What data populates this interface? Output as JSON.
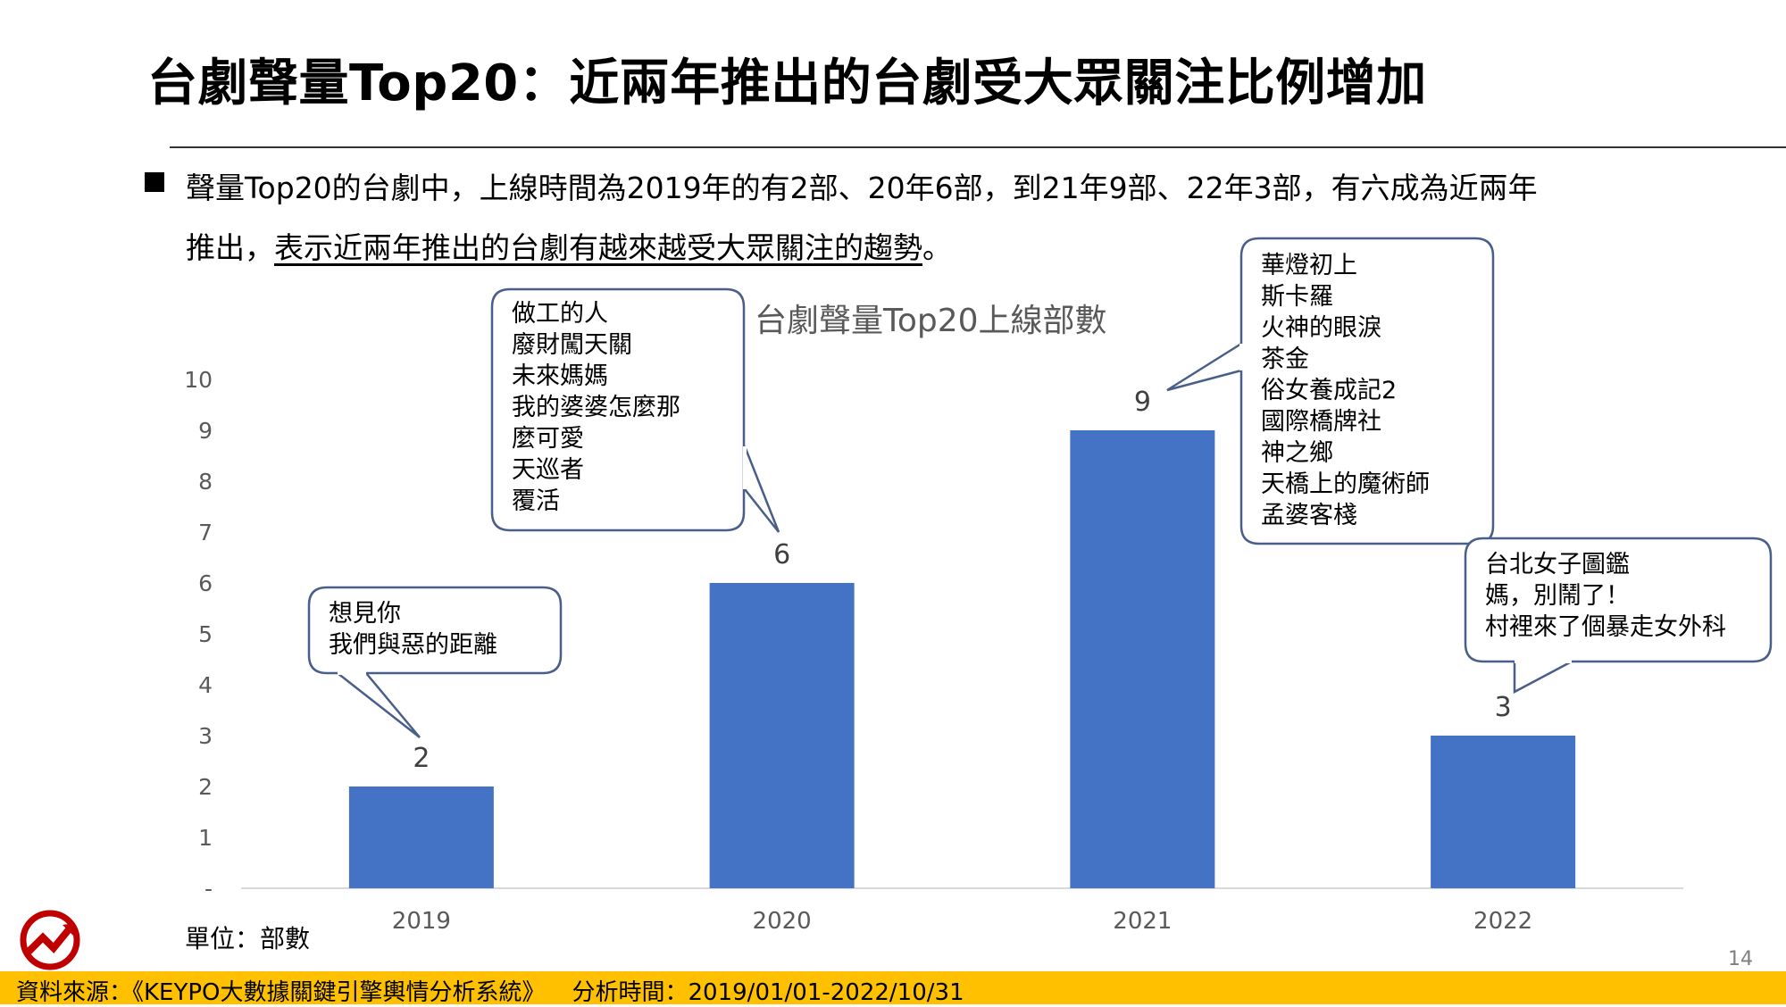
{
  "page": {
    "title": "台劇聲量Top20：近兩年推出的台劇受大眾關注比例增加",
    "bullet": {
      "line1": "聲量Top20的台劇中，上線時間為2019年的有2部、20年6部，到21年9部、22年3部，有六成為近兩年",
      "line2_prefix": "推出，",
      "line2_underlined": "表示近兩年推出的台劇有越來越受大眾關注的趨勢",
      "line2_suffix": "。"
    },
    "unit_label": "單位：部數",
    "page_number": "14",
    "footer": {
      "source": "資料來源：《KEYPO大數據關鍵引擎輿情分析系統》",
      "period": "分析時間：2019/01/01-2022/10/31"
    }
  },
  "colors": {
    "bar": "#4472C4",
    "footer_bg": "#FFC000",
    "bubble_border": "#4A5E8A",
    "axis_text": "#595959"
  },
  "chart_data": {
    "type": "bar",
    "title": "台劇聲量Top20上線部數",
    "categories": [
      "2019",
      "2020",
      "2021",
      "2022"
    ],
    "values": [
      2,
      6,
      9,
      3
    ],
    "data_labels": [
      "2",
      "6",
      "9",
      "3"
    ],
    "y_ticks": [
      "-",
      "1",
      "2",
      "3",
      "4",
      "5",
      "6",
      "7",
      "8",
      "9",
      "10"
    ],
    "ylim": [
      0,
      10
    ],
    "grid": false,
    "annotations": [
      {
        "category": "2019",
        "lines": [
          "想見你",
          "我們與惡的距離"
        ]
      },
      {
        "category": "2020",
        "lines": [
          "做工的人",
          "廢財闖天關",
          "未來媽媽",
          "我的婆婆怎麼那",
          "麼可愛",
          "天巡者",
          "覆活"
        ]
      },
      {
        "category": "2021",
        "lines": [
          "華燈初上",
          "斯卡羅",
          "火神的眼淚",
          "茶金",
          "俗女養成記2",
          "國際橋牌社",
          "神之鄉",
          "天橋上的魔術師",
          "孟婆客棧"
        ]
      },
      {
        "category": "2022",
        "lines": [
          "台北女子圖鑑",
          "媽，別鬧了！",
          "村裡來了個暴走女外科"
        ]
      }
    ]
  }
}
